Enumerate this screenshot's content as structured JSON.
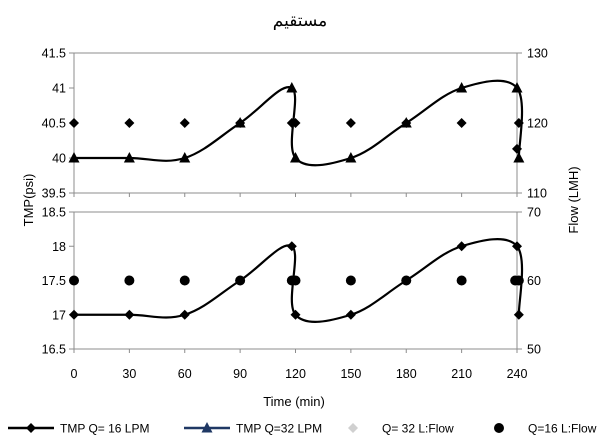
{
  "chart_data": {
    "type": "line",
    "title": "مستقيم",
    "xlabel": "Time (min)",
    "ylabel_left": "TMP(psi)",
    "ylabel_right": "Flow (LMH)",
    "x_ticks": [
      0,
      30,
      60,
      90,
      120,
      150,
      180,
      210,
      240
    ],
    "xlim": [
      0,
      240
    ],
    "grid": false,
    "legend_position": "bottom",
    "panels": [
      {
        "ylim_left": [
          39.5,
          41.5
        ],
        "yticks_left": [
          "39.5",
          "40",
          "40.5",
          "41",
          "41.5"
        ],
        "ylim_right": [
          110,
          130
        ],
        "yticks_right": [
          "110",
          "120",
          "130"
        ],
        "series": [
          {
            "name": "TMP Q=32 LPM",
            "marker": "triangle",
            "x": [
              0,
              30,
              60,
              90,
              118,
              120,
              150,
              180,
              210,
              240,
              241
            ],
            "y": [
              40,
              40,
              40,
              40.5,
              41,
              40,
              40,
              40.5,
              41,
              41,
              40
            ]
          },
          {
            "name": "Q= 32 L:Flow",
            "marker": "diamond",
            "axis": "left",
            "x": [
              0,
              30,
              60,
              90,
              118,
              120,
              150,
              180,
              210,
              240,
              241
            ],
            "y": [
              40.5,
              40.5,
              40.5,
              40.5,
              40.5,
              40.5,
              40.5,
              40.5,
              40.5,
              40.13,
              40.5
            ]
          }
        ]
      },
      {
        "ylim_left": [
          16.5,
          18.5
        ],
        "yticks_left": [
          "16.5",
          "17",
          "17.5",
          "18",
          "18.5"
        ],
        "ylim_right": [
          50,
          70
        ],
        "yticks_right": [
          "50",
          "60",
          "70"
        ],
        "series": [
          {
            "name": "TMP Q= 16 LPM",
            "marker": "diamond",
            "x": [
              0,
              30,
              60,
              90,
              118,
              120,
              150,
              180,
              210,
              240,
              241
            ],
            "y": [
              17,
              17,
              17,
              17.5,
              18,
              17,
              17,
              17.5,
              18,
              18,
              17
            ]
          },
          {
            "name": "Q=16 L:Flow",
            "marker": "circle",
            "axis": "left",
            "x": [
              0,
              30,
              60,
              90,
              118,
              120,
              150,
              180,
              210,
              239,
              241
            ],
            "y": [
              17.5,
              17.5,
              17.5,
              17.5,
              17.5,
              17.5,
              17.5,
              17.5,
              17.5,
              17.5,
              17.5
            ]
          }
        ]
      }
    ],
    "legend": [
      {
        "label": "TMP Q= 16 LPM",
        "marker": "diamond",
        "color": "#000000"
      },
      {
        "label": "TMP Q=32 LPM",
        "marker": "triangle",
        "color": "#1f3864"
      },
      {
        "label": "Q= 32 L:Flow",
        "marker": "diamond",
        "color": "#d0d0d0"
      },
      {
        "label": "Q=16 L:Flow",
        "marker": "circle",
        "color": "#000000"
      }
    ]
  }
}
